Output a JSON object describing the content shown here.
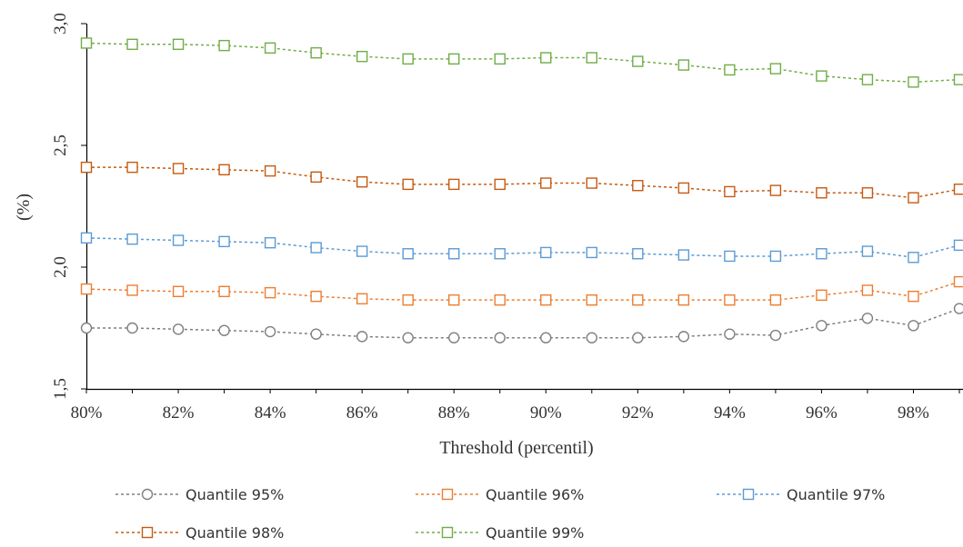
{
  "chart_data": {
    "type": "line",
    "xlabel": "Threshold (percentil)",
    "ylabel": "(%)",
    "x_tick_labels": [
      "80%",
      "82%",
      "84%",
      "86%",
      "88%",
      "90%",
      "92%",
      "94%",
      "96%",
      "98%"
    ],
    "y_tick_labels": [
      "1,5",
      "2,0",
      "2,5",
      "3,0"
    ],
    "ylim": [
      1.5,
      3.0
    ],
    "xlim": [
      80,
      99
    ],
    "x": [
      80,
      81,
      82,
      83,
      84,
      85,
      86,
      87,
      88,
      89,
      90,
      91,
      92,
      93,
      94,
      95,
      96,
      97,
      98,
      99
    ],
    "grid": false,
    "legend_position": "bottom",
    "series": [
      {
        "name": "Quantile 95%",
        "color": "#7f7f7f",
        "marker": "circle",
        "values": [
          1.75,
          1.75,
          1.745,
          1.74,
          1.735,
          1.725,
          1.715,
          1.71,
          1.71,
          1.71,
          1.71,
          1.71,
          1.71,
          1.715,
          1.725,
          1.72,
          1.76,
          1.79,
          1.76,
          1.83
        ]
      },
      {
        "name": "Quantile 96%",
        "color": "#ed7d31",
        "marker": "square",
        "values": [
          1.91,
          1.905,
          1.9,
          1.9,
          1.895,
          1.88,
          1.87,
          1.865,
          1.865,
          1.865,
          1.865,
          1.865,
          1.865,
          1.865,
          1.865,
          1.865,
          1.885,
          1.905,
          1.88,
          1.94
        ]
      },
      {
        "name": "Quantile 97%",
        "color": "#5b9bd5",
        "marker": "square",
        "values": [
          2.12,
          2.115,
          2.11,
          2.105,
          2.1,
          2.08,
          2.065,
          2.055,
          2.055,
          2.055,
          2.06,
          2.06,
          2.055,
          2.05,
          2.045,
          2.045,
          2.055,
          2.065,
          2.04,
          2.09
        ]
      },
      {
        "name": "Quantile 98%",
        "color": "#c55a11",
        "marker": "square",
        "values": [
          2.41,
          2.41,
          2.405,
          2.4,
          2.395,
          2.37,
          2.35,
          2.34,
          2.34,
          2.34,
          2.345,
          2.345,
          2.335,
          2.325,
          2.31,
          2.315,
          2.305,
          2.305,
          2.285,
          2.32
        ]
      },
      {
        "name": "Quantile 99%",
        "color": "#70ad47",
        "marker": "square",
        "values": [
          2.92,
          2.915,
          2.915,
          2.91,
          2.9,
          2.88,
          2.865,
          2.855,
          2.855,
          2.855,
          2.86,
          2.86,
          2.845,
          2.83,
          2.81,
          2.815,
          2.785,
          2.77,
          2.76,
          2.77
        ]
      }
    ]
  }
}
